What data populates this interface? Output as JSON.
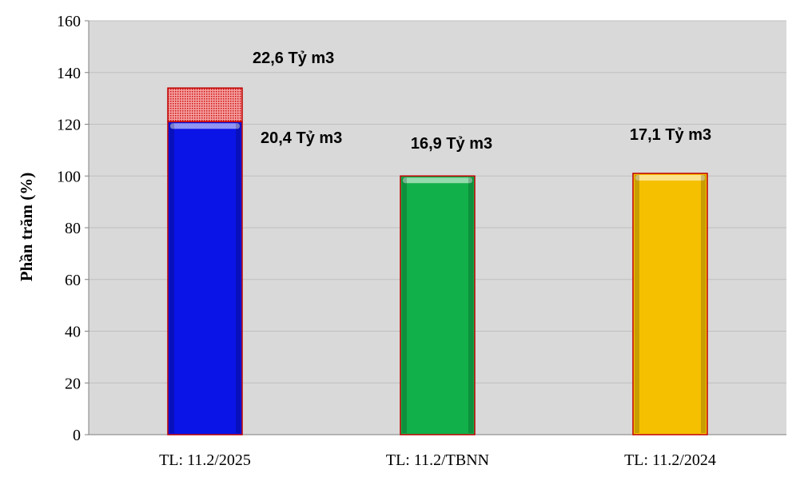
{
  "chart_data": {
    "type": "bar",
    "ylabel": "Phần trăm (%)",
    "xlabel": "",
    "ylim": [
      0,
      160
    ],
    "yticks": [
      0,
      20,
      40,
      60,
      80,
      100,
      120,
      140,
      160
    ],
    "grid": true,
    "categories": [
      "TL: 11.2/2025",
      "TL: 11.2/TBNN",
      "TL: 11.2/2024"
    ],
    "bars": [
      {
        "category": "TL: 11.2/2025",
        "value": 121,
        "color": "#0a14e6",
        "label": "20,4 Tỷ m3",
        "extra": {
          "value": 13,
          "color": "#e01818",
          "label": "22,6 Tỷ m3"
        }
      },
      {
        "category": "TL: 11.2/TBNN",
        "value": 100,
        "color": "#12b04a",
        "label": "16,9 Tỷ m3"
      },
      {
        "category": "TL: 11.2/2024",
        "value": 101,
        "color": "#f5c000",
        "label": "17,1 Tỷ m3"
      }
    ],
    "colors": {
      "plot_background": "#d9d9d9",
      "gridline": "#bfbfbf",
      "bar_border": "#c00000"
    }
  }
}
